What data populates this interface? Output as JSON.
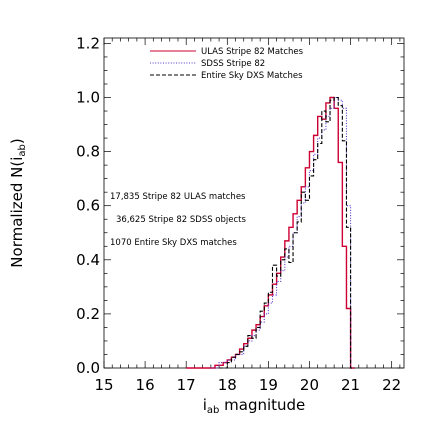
{
  "chart_data": {
    "type": "line",
    "xlabel": "i",
    "xlabel_sub": "ab",
    "xlabel_suffix": " magnitude",
    "ylabel": "Normalized N(i",
    "ylabel_sub": "ab",
    "ylabel_suffix": ")",
    "xlim": [
      15.0,
      22.3
    ],
    "ylim": [
      0.0,
      1.22
    ],
    "x_ticks": [
      "15",
      "16",
      "17",
      "18",
      "19",
      "20",
      "21",
      "22"
    ],
    "y_ticks": [
      "0.0",
      "0.2",
      "0.4",
      "0.6",
      "0.8",
      "1.0",
      "1.2"
    ],
    "legend_position": "top-right",
    "grid": false,
    "annotations": [
      "17,835 Stripe 82 ULAS matches",
      "36,625 Stripe 82 SDSS objects",
      "1070 Entire Sky DXS matches"
    ],
    "series": [
      {
        "name": "ULAS Stripe 82 Matches",
        "color": "#cc0033",
        "style": "solid",
        "x": [
          17.0,
          17.5,
          17.7,
          17.8,
          17.9,
          18.0,
          18.1,
          18.2,
          18.3,
          18.4,
          18.5,
          18.6,
          18.7,
          18.8,
          18.9,
          19.0,
          19.1,
          19.2,
          19.3,
          19.4,
          19.5,
          19.6,
          19.7,
          19.8,
          19.9,
          20.0,
          20.1,
          20.2,
          20.3,
          20.4,
          20.5,
          20.6,
          20.7,
          20.8,
          20.9,
          21.0
        ],
        "y": [
          0.0,
          0.0,
          0.01,
          0.01,
          0.02,
          0.03,
          0.04,
          0.05,
          0.07,
          0.09,
          0.11,
          0.14,
          0.16,
          0.19,
          0.23,
          0.27,
          0.31,
          0.35,
          0.41,
          0.47,
          0.52,
          0.57,
          0.62,
          0.67,
          0.74,
          0.8,
          0.86,
          0.93,
          0.92,
          0.98,
          1.0,
          0.96,
          0.76,
          0.45,
          0.22,
          0.0
        ]
      },
      {
        "name": "SDSS Stripe 82",
        "color": "#5533cc",
        "style": "dotted",
        "x": [
          17.6,
          17.8,
          18.0,
          18.2,
          18.4,
          18.5,
          18.6,
          18.7,
          18.8,
          18.9,
          19.0,
          19.1,
          19.2,
          19.3,
          19.4,
          19.5,
          19.6,
          19.7,
          19.8,
          19.9,
          20.0,
          20.1,
          20.2,
          20.3,
          20.4,
          20.5,
          20.6,
          20.7,
          20.8,
          20.9,
          21.0
        ],
        "y": [
          0.0,
          0.02,
          0.03,
          0.05,
          0.08,
          0.1,
          0.12,
          0.14,
          0.17,
          0.2,
          0.24,
          0.27,
          0.32,
          0.36,
          0.41,
          0.45,
          0.5,
          0.56,
          0.61,
          0.67,
          0.73,
          0.79,
          0.85,
          0.88,
          0.93,
          0.96,
          1.0,
          0.99,
          0.96,
          0.6,
          0.0
        ]
      },
      {
        "name": "Entire Sky DXS Matches",
        "color": "#000000",
        "style": "dashed",
        "x": [
          17.8,
          18.0,
          18.1,
          18.2,
          18.3,
          18.4,
          18.5,
          18.6,
          18.7,
          18.8,
          18.9,
          19.0,
          19.1,
          19.2,
          19.3,
          19.4,
          19.5,
          19.6,
          19.7,
          19.8,
          19.9,
          20.0,
          20.1,
          20.2,
          20.3,
          20.4,
          20.5,
          20.6,
          20.7,
          20.8,
          20.9,
          21.0
        ],
        "y": [
          0.0,
          0.02,
          0.04,
          0.05,
          0.06,
          0.08,
          0.12,
          0.11,
          0.15,
          0.21,
          0.24,
          0.28,
          0.38,
          0.34,
          0.4,
          0.44,
          0.39,
          0.5,
          0.54,
          0.65,
          0.62,
          0.71,
          0.77,
          0.83,
          0.95,
          0.91,
          0.99,
          1.0,
          0.97,
          0.84,
          0.52,
          0.0
        ]
      }
    ]
  }
}
